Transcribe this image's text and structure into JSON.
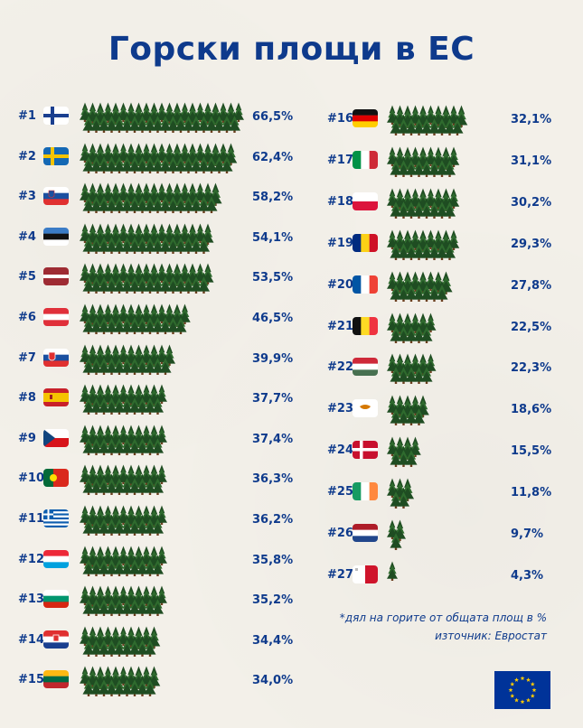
{
  "title": "Горски площи в ЕС",
  "chart_data": {
    "type": "bar",
    "title": "Горски площи в ЕС",
    "unit": "%",
    "rows": [
      {
        "rank": "#1",
        "country": "finland",
        "value": 66.5,
        "label": "66,5%"
      },
      {
        "rank": "#2",
        "country": "sweden",
        "value": 62.4,
        "label": "62,4%"
      },
      {
        "rank": "#3",
        "country": "slovenia",
        "value": 58.2,
        "label": "58,2%"
      },
      {
        "rank": "#4",
        "country": "estonia",
        "value": 54.1,
        "label": "54,1%"
      },
      {
        "rank": "#5",
        "country": "latvia",
        "value": 53.5,
        "label": "53,5%"
      },
      {
        "rank": "#6",
        "country": "austria",
        "value": 46.5,
        "label": "46,5%"
      },
      {
        "rank": "#7",
        "country": "slovakia",
        "value": 39.9,
        "label": "39,9%"
      },
      {
        "rank": "#8",
        "country": "spain",
        "value": 37.7,
        "label": "37,7%"
      },
      {
        "rank": "#9",
        "country": "czechia",
        "value": 37.4,
        "label": "37,4%"
      },
      {
        "rank": "#10",
        "country": "portugal",
        "value": 36.3,
        "label": "36,3%"
      },
      {
        "rank": "#11",
        "country": "greece",
        "value": 36.2,
        "label": "36,2%"
      },
      {
        "rank": "#12",
        "country": "luxembourg",
        "value": 35.8,
        "label": "35,8%"
      },
      {
        "rank": "#13",
        "country": "bulgaria",
        "value": 35.2,
        "label": "35,2%"
      },
      {
        "rank": "#14",
        "country": "croatia",
        "value": 34.4,
        "label": "34,4%"
      },
      {
        "rank": "#15",
        "country": "lithuania",
        "value": 34.0,
        "label": "34,0%"
      },
      {
        "rank": "#16",
        "country": "germany",
        "value": 32.1,
        "label": "32,1%"
      },
      {
        "rank": "#17",
        "country": "italy",
        "value": 31.1,
        "label": "31,1%"
      },
      {
        "rank": "#18",
        "country": "poland",
        "value": 30.2,
        "label": "30,2%"
      },
      {
        "rank": "#19",
        "country": "romania",
        "value": 29.3,
        "label": "29,3%"
      },
      {
        "rank": "#20",
        "country": "france",
        "value": 27.8,
        "label": "27,8%"
      },
      {
        "rank": "#21",
        "country": "belgium",
        "value": 22.5,
        "label": "22,5%"
      },
      {
        "rank": "#22",
        "country": "hungary",
        "value": 22.3,
        "label": "22,3%"
      },
      {
        "rank": "#23",
        "country": "cyprus",
        "value": 18.6,
        "label": "18,6%"
      },
      {
        "rank": "#24",
        "country": "denmark",
        "value": 15.5,
        "label": "15,5%"
      },
      {
        "rank": "#25",
        "country": "ireland",
        "value": 11.8,
        "label": "11,8%"
      },
      {
        "rank": "#26",
        "country": "netherlands",
        "value": 9.7,
        "label": "9,7%"
      },
      {
        "rank": "#27",
        "country": "malta",
        "value": 4.3,
        "label": "4,3%"
      }
    ]
  },
  "notes": {
    "line1": "*дял на горите от общата площ в %",
    "line2": "източник: Евростат"
  },
  "colors": {
    "title": "#0e3a8c",
    "tree_dark": "#1f4d22",
    "tree_light": "#2f6b2e",
    "trunk": "#6b3f1f",
    "eu_blue": "#003399",
    "eu_star": "#ffcc00"
  },
  "icons": {
    "eu_flag": "eu-flag-icon"
  }
}
